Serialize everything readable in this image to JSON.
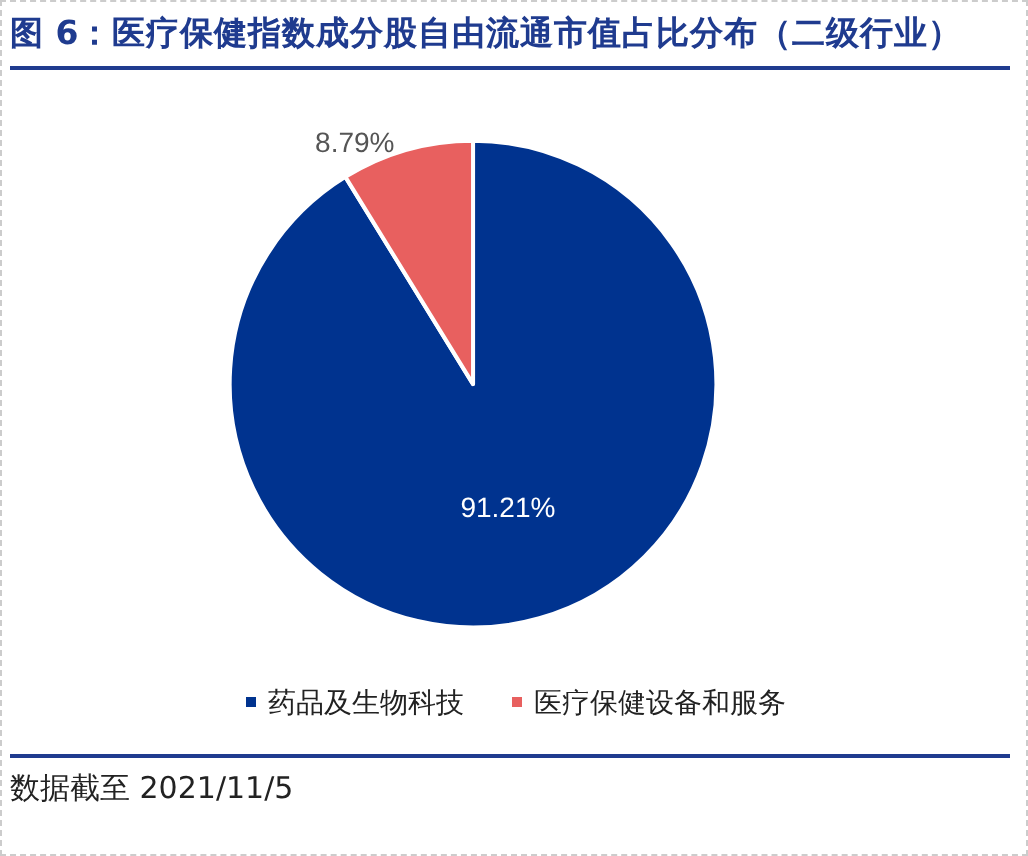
{
  "chart_data": {
    "type": "pie",
    "title": "图 6：医疗保健指数成分股自由流通市值占比分布（二级行业）",
    "categories": [
      "药品及生物科技",
      "医疗保健设备和服务"
    ],
    "values": [
      91.21,
      8.79
    ],
    "colors": [
      "#00338f",
      "#e8605f"
    ],
    "value_labels": [
      "91.21%",
      "8.79%"
    ],
    "legend": "bottom",
    "annotations": [
      "数据截至 2021/11/5"
    ]
  }
}
